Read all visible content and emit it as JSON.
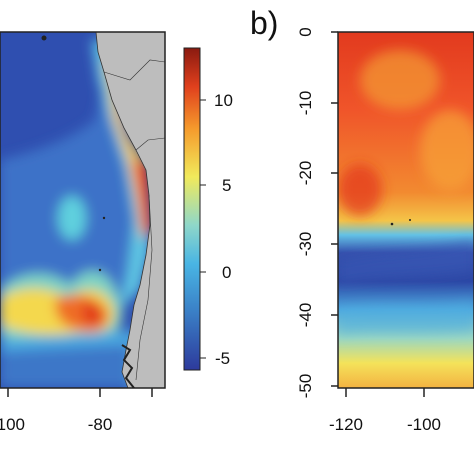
{
  "panel_a": {
    "x_ticks": [
      "-100",
      "-80"
    ],
    "colorbar": {
      "ticks": [
        "10",
        "5",
        "0",
        "-5"
      ],
      "colors": [
        "#2d3a9c",
        "#3a7fc6",
        "#49b5e4",
        "#8fd7c9",
        "#f1ea5b",
        "#f59a2c",
        "#e0401d",
        "#8a1a10"
      ],
      "range": [
        -6,
        13
      ]
    }
  },
  "panel_b": {
    "label": "b)",
    "y_ticks": [
      "0",
      "-10",
      "-20",
      "-30",
      "-40",
      "-50"
    ],
    "x_ticks": [
      "-120",
      "-100"
    ]
  },
  "colors": {
    "land": "#bdbdbd",
    "ocean_low": "#2f4fb0",
    "ocean_mid": "#3b8ad6",
    "warm": "#ef6a2a",
    "hot": "#d7261e"
  }
}
